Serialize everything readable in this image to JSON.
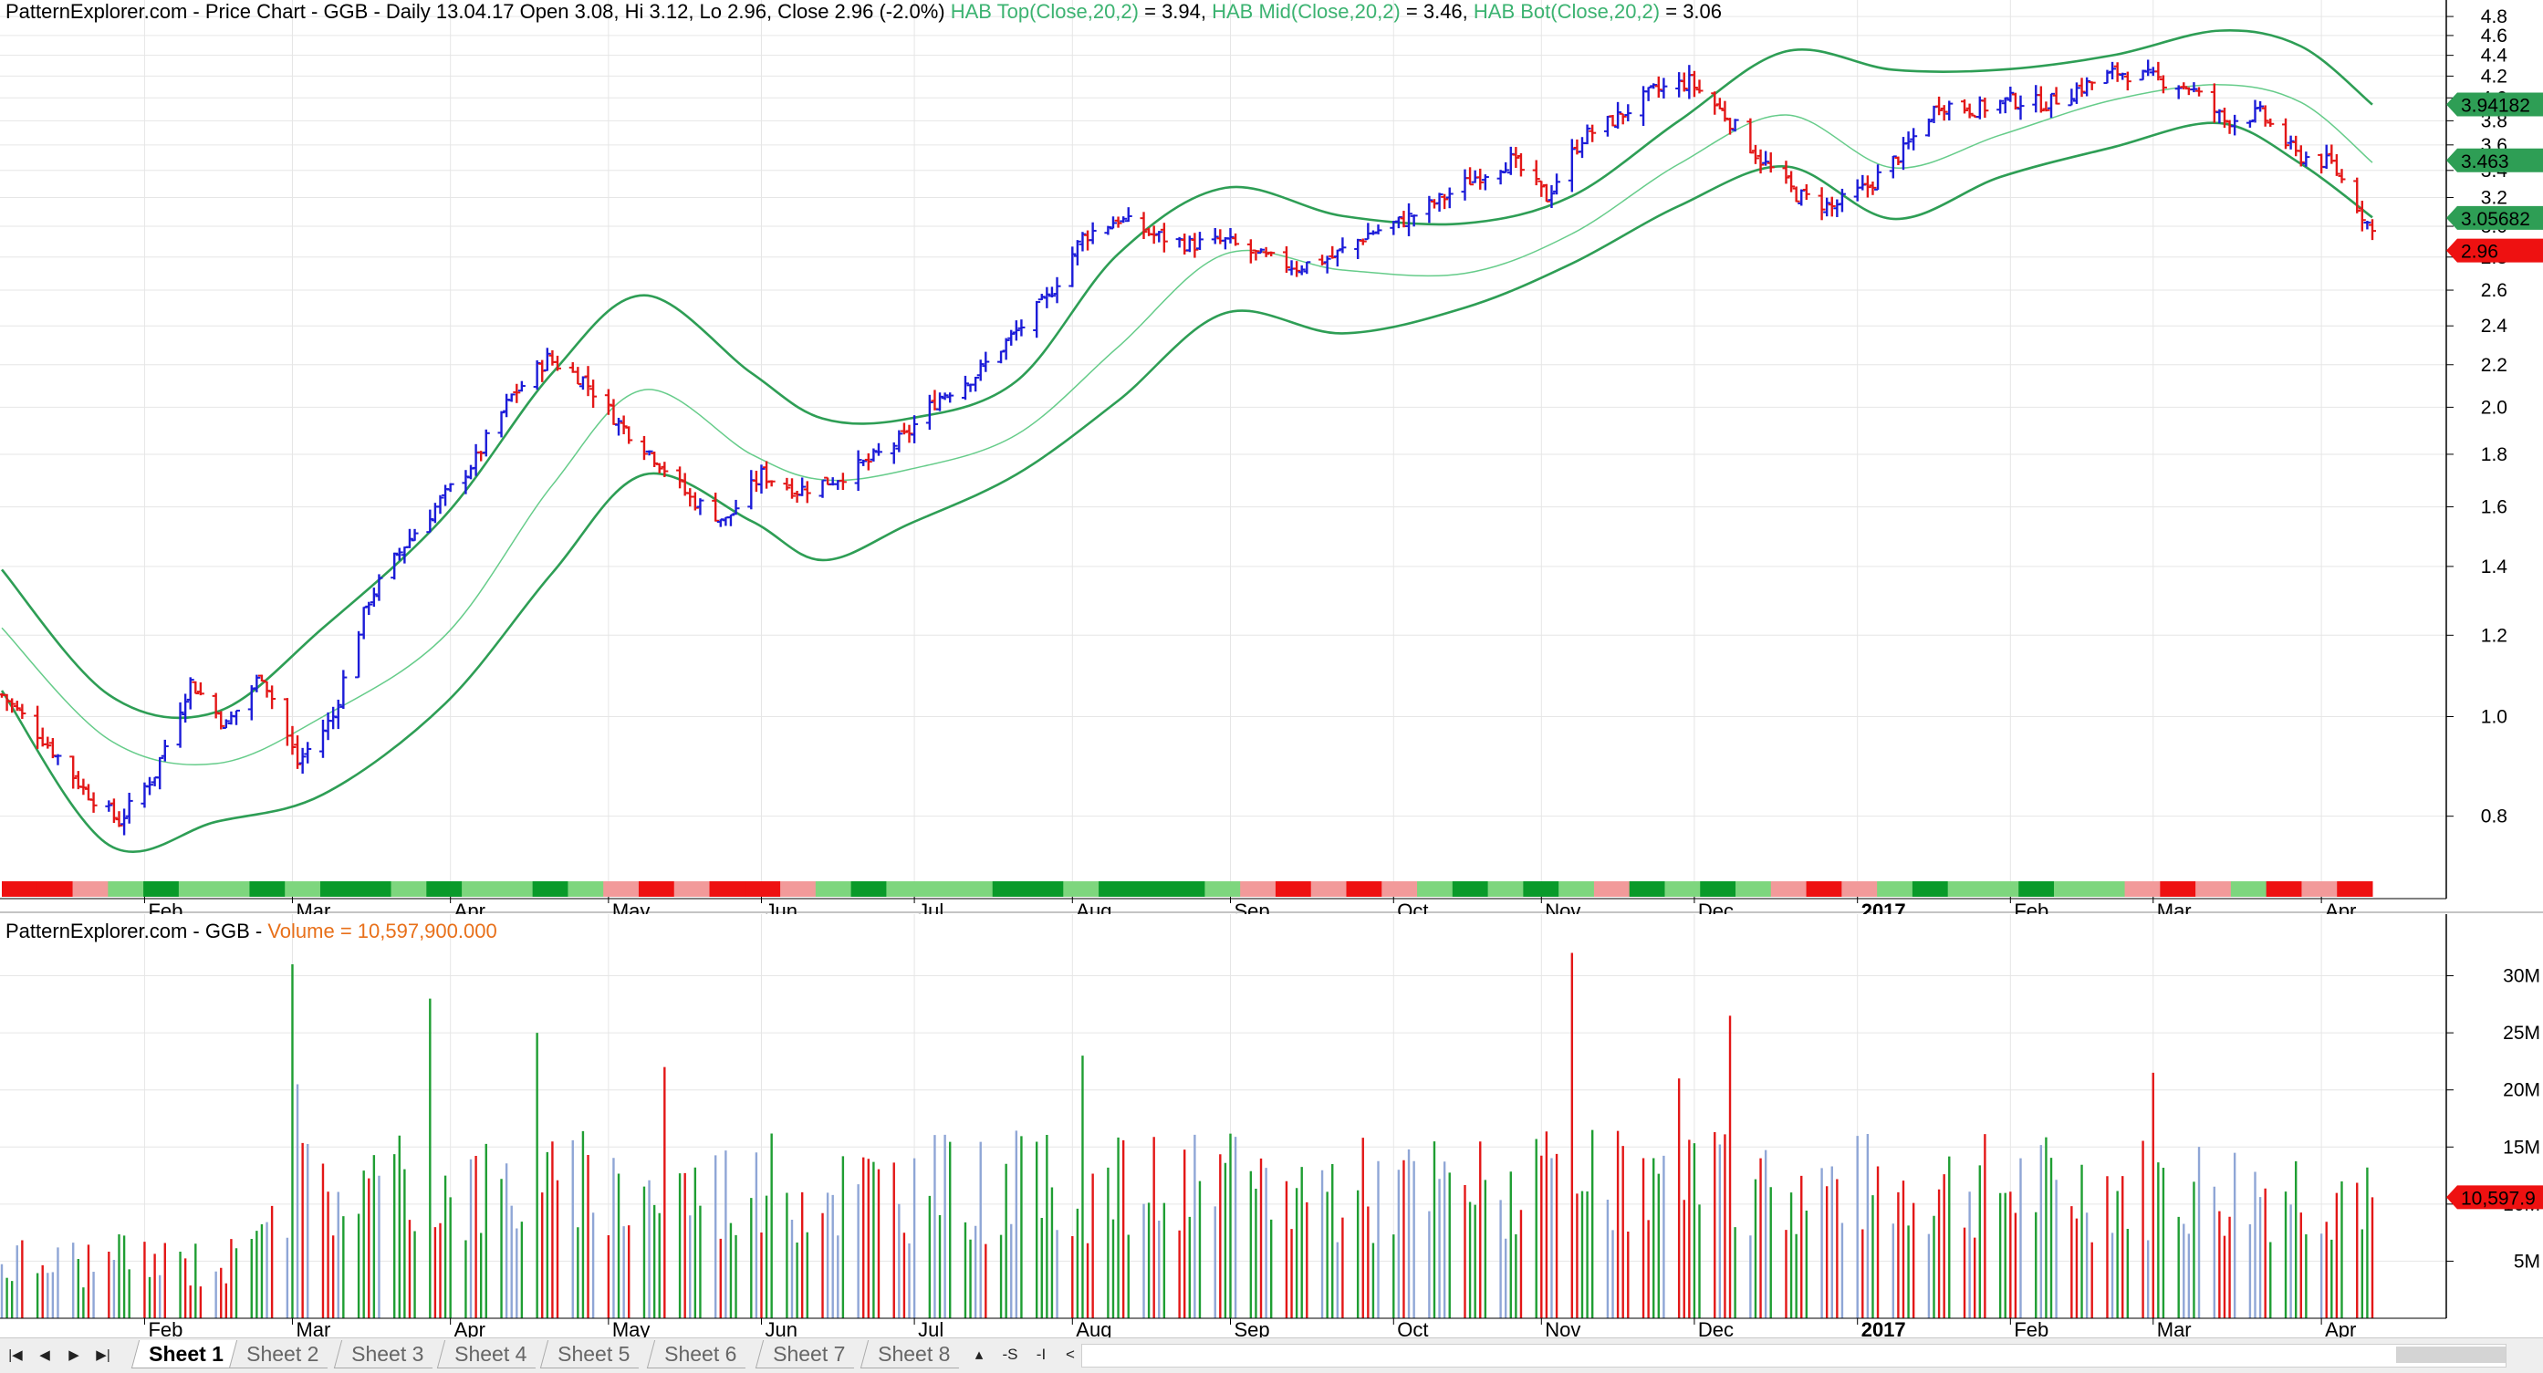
{
  "chart_data": [
    {
      "type": "candlestick",
      "title": "PatternExplorer.com - Price Chart - GGB - Daily 13.04.17 Open 3.08, Hi 3.12, Lo 2.96, Close 2.96 (-2.0%)",
      "title_parts": {
        "base": "PatternExplorer.com - Price Chart - GGB - Daily 13.04.17 Open 3.08, Hi 3.12, Lo 2.96, Close 2.96 (-2.0%)",
        "hab_top_label": "HAB Top(Close,20,2)",
        "hab_top_value": "= 3.94,",
        "hab_mid_label": "HAB Mid(Close,20,2)",
        "hab_mid_value": "= 3.46,",
        "hab_bot_label": "HAB Bot(Close,20,2)",
        "hab_bot_value": "= 3.06"
      },
      "y_scale": "log",
      "ylim": [
        0.7,
        4.9
      ],
      "y_ticks": [
        "0.8",
        "1.0",
        "1.2",
        "1.4",
        "1.6",
        "1.8",
        "2.0",
        "2.2",
        "2.4",
        "2.6",
        "2.8",
        "3.0",
        "3.2",
        "3.4",
        "3.6",
        "3.8",
        "4.0",
        "4.2",
        "4.4",
        "4.6",
        "4.8"
      ],
      "x_labels": [
        "Feb",
        "Mar",
        "Apr",
        "May",
        "Jun",
        "Jul",
        "Aug",
        "Sep",
        "Oct",
        "Nov",
        "Dec",
        "2017",
        "Feb",
        "Mar",
        "Apr"
      ],
      "x_range": [
        "2016-01-04",
        "2017-04-13"
      ],
      "grid": true,
      "series": [
        {
          "name": "HAB Top(Close,20,2)",
          "color": "#2e9e55",
          "x": [
            "2016-01-04",
            "2016-01-25",
            "2016-02-15",
            "2016-03-07",
            "2016-03-31",
            "2016-04-21",
            "2016-05-09",
            "2016-05-30",
            "2016-06-13",
            "2016-06-30",
            "2016-07-21",
            "2016-08-10",
            "2016-08-31",
            "2016-09-23",
            "2016-10-17",
            "2016-11-07",
            "2016-11-28",
            "2016-12-19",
            "2017-01-09",
            "2017-01-30",
            "2017-02-21",
            "2017-03-14",
            "2017-03-30",
            "2017-04-13"
          ],
          "values": [
            1.39,
            1.05,
            1.01,
            1.22,
            1.57,
            2.16,
            2.57,
            2.16,
            1.95,
            1.95,
            2.12,
            2.82,
            3.27,
            3.07,
            3.02,
            3.21,
            3.8,
            4.44,
            4.26,
            4.26,
            4.4,
            4.65,
            4.49,
            3.94
          ]
        },
        {
          "name": "HAB Mid(Close,20,2)",
          "color": "#66cc8a",
          "x": [
            "2016-01-04",
            "2016-01-25",
            "2016-02-15",
            "2016-03-07",
            "2016-03-31",
            "2016-04-21",
            "2016-05-09",
            "2016-05-30",
            "2016-06-13",
            "2016-06-30",
            "2016-07-21",
            "2016-08-10",
            "2016-08-31",
            "2016-09-23",
            "2016-10-17",
            "2016-11-07",
            "2016-11-28",
            "2016-12-19",
            "2017-01-09",
            "2017-01-30",
            "2017-02-21",
            "2017-03-14",
            "2017-03-30",
            "2017-04-13"
          ],
          "values": [
            1.22,
            0.95,
            0.9,
            1.0,
            1.2,
            1.68,
            2.08,
            1.8,
            1.7,
            1.74,
            1.88,
            2.29,
            2.82,
            2.72,
            2.7,
            2.95,
            3.45,
            3.85,
            3.42,
            3.68,
            3.98,
            4.12,
            3.96,
            3.46
          ]
        },
        {
          "name": "HAB Bot(Close,20,2)",
          "color": "#2e9e55",
          "x": [
            "2016-01-04",
            "2016-01-25",
            "2016-02-15",
            "2016-03-07",
            "2016-03-31",
            "2016-04-21",
            "2016-05-09",
            "2016-05-30",
            "2016-06-13",
            "2016-06-30",
            "2016-07-21",
            "2016-08-10",
            "2016-08-31",
            "2016-09-23",
            "2016-10-17",
            "2016-11-07",
            "2016-11-28",
            "2016-12-19",
            "2017-01-09",
            "2017-01-30",
            "2017-02-21",
            "2017-03-14",
            "2017-03-30",
            "2017-04-13"
          ],
          "values": [
            1.06,
            0.75,
            0.79,
            0.84,
            1.03,
            1.38,
            1.72,
            1.55,
            1.42,
            1.54,
            1.72,
            2.03,
            2.47,
            2.36,
            2.5,
            2.76,
            3.14,
            3.43,
            3.05,
            3.35,
            3.58,
            3.78,
            3.45,
            3.06
          ]
        },
        {
          "name": "Close",
          "color": "#1c1cd8",
          "x": [
            "2016-01-04",
            "2016-01-13",
            "2016-01-20",
            "2016-01-27",
            "2016-02-03",
            "2016-02-10",
            "2016-02-17",
            "2016-02-24",
            "2016-03-02",
            "2016-03-09",
            "2016-03-16",
            "2016-03-23",
            "2016-03-30",
            "2016-04-06",
            "2016-04-13",
            "2016-04-20",
            "2016-04-27",
            "2016-05-04",
            "2016-05-11",
            "2016-05-18",
            "2016-05-25",
            "2016-06-01",
            "2016-06-08",
            "2016-06-15",
            "2016-06-22",
            "2016-06-29",
            "2016-07-06",
            "2016-07-13",
            "2016-07-20",
            "2016-07-27",
            "2016-08-03",
            "2016-08-10",
            "2016-08-17",
            "2016-08-24",
            "2016-08-31",
            "2016-09-07",
            "2016-09-14",
            "2016-09-21",
            "2016-09-28",
            "2016-10-05",
            "2016-10-12",
            "2016-10-19",
            "2016-10-26",
            "2016-11-02",
            "2016-11-09",
            "2016-11-16",
            "2016-11-23",
            "2016-11-30",
            "2016-12-07",
            "2016-12-14",
            "2016-12-21",
            "2016-12-28",
            "2017-01-04",
            "2017-01-11",
            "2017-01-18",
            "2017-01-25",
            "2017-02-01",
            "2017-02-08",
            "2017-02-15",
            "2017-02-22",
            "2017-03-01",
            "2017-03-08",
            "2017-03-15",
            "2017-03-22",
            "2017-03-29",
            "2017-04-05",
            "2017-04-13"
          ],
          "values": [
            1.05,
            0.94,
            0.85,
            0.79,
            0.88,
            1.08,
            0.98,
            1.1,
            0.9,
            1.0,
            1.3,
            1.47,
            1.62,
            1.78,
            2.05,
            2.23,
            2.13,
            1.93,
            1.79,
            1.63,
            1.55,
            1.72,
            1.66,
            1.7,
            1.77,
            1.87,
            2.05,
            2.15,
            2.34,
            2.55,
            2.93,
            3.05,
            2.94,
            2.88,
            2.9,
            2.8,
            2.74,
            2.8,
            2.95,
            3.04,
            3.18,
            3.35,
            3.48,
            3.2,
            3.66,
            3.83,
            4.06,
            4.15,
            3.85,
            3.48,
            3.22,
            3.13,
            3.28,
            3.55,
            3.95,
            3.9,
            3.98,
            3.95,
            4.1,
            4.24,
            4.18,
            4.1,
            3.8,
            3.86,
            3.52,
            3.45,
            2.96
          ]
        }
      ],
      "last_values": [
        {
          "label": "3.94182",
          "value": 3.94182,
          "color": "#2e9e55"
        },
        {
          "label": "3.463",
          "value": 3.463,
          "color": "#2e9e55"
        },
        {
          "label": "3.05682",
          "value": 3.05682,
          "color": "#2e9e55"
        },
        {
          "label": "2.96",
          "value": 2.96,
          "color": "#ee1111"
        }
      ],
      "strip_colors": [
        "#ee1111",
        "#ee1111",
        "#f29a9a",
        "#7ed67e",
        "#0a9a2a",
        "#7ed67e",
        "#7ed67e",
        "#0a9a2a",
        "#7ed67e",
        "#0a9a2a",
        "#0a9a2a",
        "#7ed67e",
        "#0a9a2a",
        "#7ed67e",
        "#7ed67e",
        "#0a9a2a",
        "#7ed67e",
        "#f29a9a",
        "#ee1111",
        "#f29a9a",
        "#ee1111",
        "#ee1111",
        "#f29a9a",
        "#7ed67e",
        "#0a9a2a",
        "#7ed67e",
        "#7ed67e",
        "#7ed67e",
        "#0a9a2a",
        "#0a9a2a",
        "#7ed67e",
        "#0a9a2a",
        "#0a9a2a",
        "#0a9a2a",
        "#7ed67e",
        "#f29a9a",
        "#ee1111",
        "#f29a9a",
        "#ee1111",
        "#f29a9a",
        "#7ed67e",
        "#0a9a2a",
        "#7ed67e",
        "#0a9a2a",
        "#7ed67e",
        "#f29a9a",
        "#0a9a2a",
        "#7ed67e",
        "#0a9a2a",
        "#7ed67e",
        "#f29a9a",
        "#ee1111",
        "#f29a9a",
        "#7ed67e",
        "#0a9a2a",
        "#7ed67e",
        "#7ed67e",
        "#0a9a2a",
        "#7ed67e",
        "#7ed67e",
        "#f29a9a",
        "#ee1111",
        "#f29a9a",
        "#7ed67e",
        "#ee1111",
        "#f29a9a",
        "#ee1111"
      ]
    },
    {
      "type": "bar",
      "title": "PatternExplorer.com - GGB -",
      "title_parts": {
        "base": "PatternExplorer.com - GGB -",
        "volume_label": "Volume = 10,597,900.000"
      },
      "ylim": [
        0,
        33000000
      ],
      "y_ticks": [
        "5M",
        "10M",
        "15M",
        "20M",
        "25M",
        "30M"
      ],
      "x_labels": [
        "Feb",
        "Mar",
        "Apr",
        "May",
        "Jun",
        "Jul",
        "Aug",
        "Sep",
        "Oct",
        "Nov",
        "Dec",
        "2017",
        "Feb",
        "Mar",
        "Apr"
      ],
      "x_range": [
        "2016-01-04",
        "2017-04-13"
      ],
      "grid": true,
      "bar_colors": {
        "up": "#1f9e33",
        "down": "#e31717",
        "neutral": "#8fa6d6"
      },
      "last_value_label": "10,597.9",
      "peaks": [
        {
          "date": "2016-03-01",
          "value": 31000000,
          "color": "#1f9e33"
        },
        {
          "date": "2016-03-02",
          "value": 20500000,
          "color": "#8fa6d6"
        },
        {
          "date": "2016-03-28",
          "value": 28000000,
          "color": "#1f9e33"
        },
        {
          "date": "2016-04-18",
          "value": 25000000,
          "color": "#1f9e33"
        },
        {
          "date": "2016-05-13",
          "value": 22000000,
          "color": "#e31717"
        },
        {
          "date": "2016-08-03",
          "value": 23000000,
          "color": "#1f9e33"
        },
        {
          "date": "2016-11-07",
          "value": 32000000,
          "color": "#e31717"
        },
        {
          "date": "2016-11-28",
          "value": 21000000,
          "color": "#e31717"
        },
        {
          "date": "2016-12-08",
          "value": 26500000,
          "color": "#e31717"
        },
        {
          "date": "2017-03-01",
          "value": 21500000,
          "color": "#e31717"
        },
        {
          "date": "2017-04-13",
          "value": 10597900,
          "color": "#e31717"
        }
      ]
    }
  ],
  "sheets": {
    "tabs": [
      {
        "label": "Sheet 1",
        "active": true
      },
      {
        "label": "Sheet 2",
        "active": false
      },
      {
        "label": "Sheet 3",
        "active": false
      },
      {
        "label": "Sheet 4",
        "active": false
      },
      {
        "label": "Sheet 5",
        "active": false
      },
      {
        "label": "Sheet 6",
        "active": false
      },
      {
        "label": "Sheet 7",
        "active": false
      },
      {
        "label": "Sheet 8",
        "active": false
      }
    ],
    "nav_icons": [
      "first-icon",
      "prev-icon",
      "next-icon",
      "last-icon"
    ],
    "tools": [
      "▴",
      "-S",
      "-I",
      "<"
    ]
  }
}
